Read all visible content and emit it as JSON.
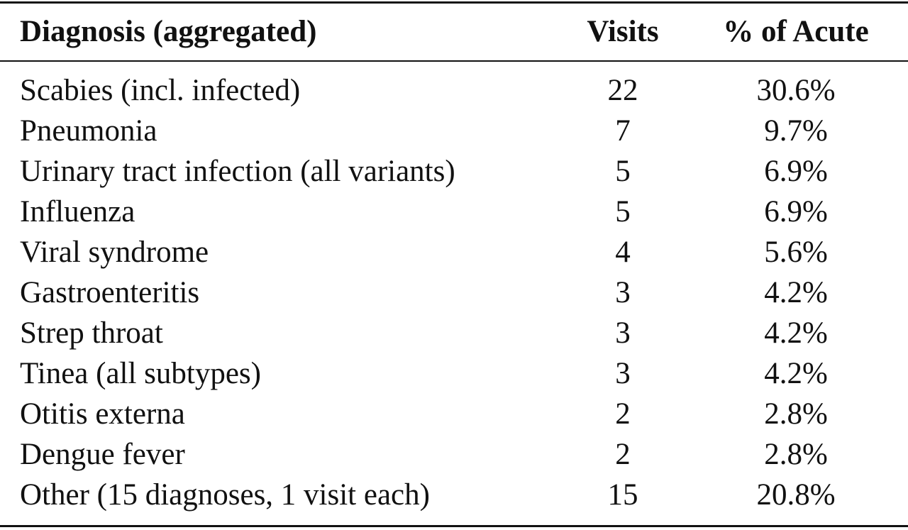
{
  "table": {
    "header": [
      "Diagnosis (aggregated)",
      "Visits",
      "% of Acute"
    ],
    "rows": [
      [
        "Scabies (incl. infected)",
        "22",
        "30.6%"
      ],
      [
        "Pneumonia",
        "7",
        "9.7%"
      ],
      [
        "Urinary tract infection (all variants)",
        "5",
        "6.9%"
      ],
      [
        "Influenza",
        "5",
        "6.9%"
      ],
      [
        "Viral syndrome",
        "4",
        "5.6%"
      ],
      [
        "Gastroenteritis",
        "3",
        "4.2%"
      ],
      [
        "Strep throat",
        "3",
        "4.2%"
      ],
      [
        "Tinea (all subtypes)",
        "3",
        "4.2%"
      ],
      [
        "Otitis externa",
        "2",
        "2.8%"
      ],
      [
        "Dengue fever",
        "2",
        "2.8%"
      ],
      [
        "Other (15 diagnoses, 1 visit each)",
        "15",
        "20.8%"
      ]
    ]
  }
}
